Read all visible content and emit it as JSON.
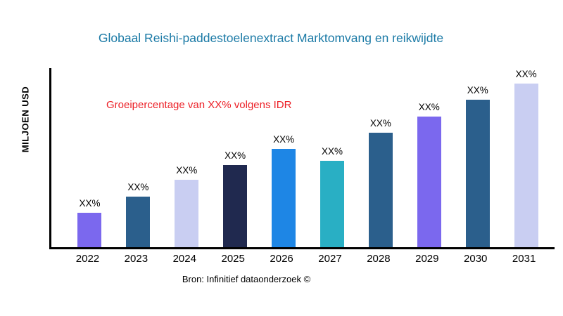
{
  "title": "Globaal Reishi-paddestoelenextract Marktomvang en reikwijdte",
  "y_axis_label": "MILJOEN USD",
  "annotation": "Groeipercentage van XX% volgens IDR",
  "source": "Bron: Infinitief dataonderzoek ©",
  "colors": {
    "title": "#1b7aa6",
    "annotation": "#ec2027",
    "axis": "#000000",
    "background": "#ffffff"
  },
  "chart_data": {
    "type": "bar",
    "title": "Globaal Reishi-paddestoelenextract Marktomvang en reikwijdte",
    "ylabel": "MILJOEN USD",
    "xlabel": "",
    "categories": [
      "2022",
      "2023",
      "2024",
      "2025",
      "2026",
      "2027",
      "2028",
      "2029",
      "2030",
      "2031"
    ],
    "values_relative": [
      21,
      31,
      41,
      50,
      60,
      53,
      70,
      80,
      90,
      100
    ],
    "values_unit": "relative bar height, tallest bar (2031) = 100; numeric values masked as XX% in chart",
    "bar_labels": [
      "XX%",
      "XX%",
      "XX%",
      "XX%",
      "XX%",
      "XX%",
      "XX%",
      "XX%",
      "XX%",
      "XX%"
    ],
    "bar_colors": [
      "#7b68ee",
      "#2b5f8c",
      "#c9cef2",
      "#20294f",
      "#1e86e5",
      "#29afc4",
      "#2b5f8c",
      "#7b68ee",
      "#2b5f8c",
      "#c9cef2"
    ],
    "annotation": "Groeipercentage van XX% volgens IDR",
    "source": "Bron: Infinitief dataonderzoek ©",
    "legend": false,
    "grid": false
  }
}
